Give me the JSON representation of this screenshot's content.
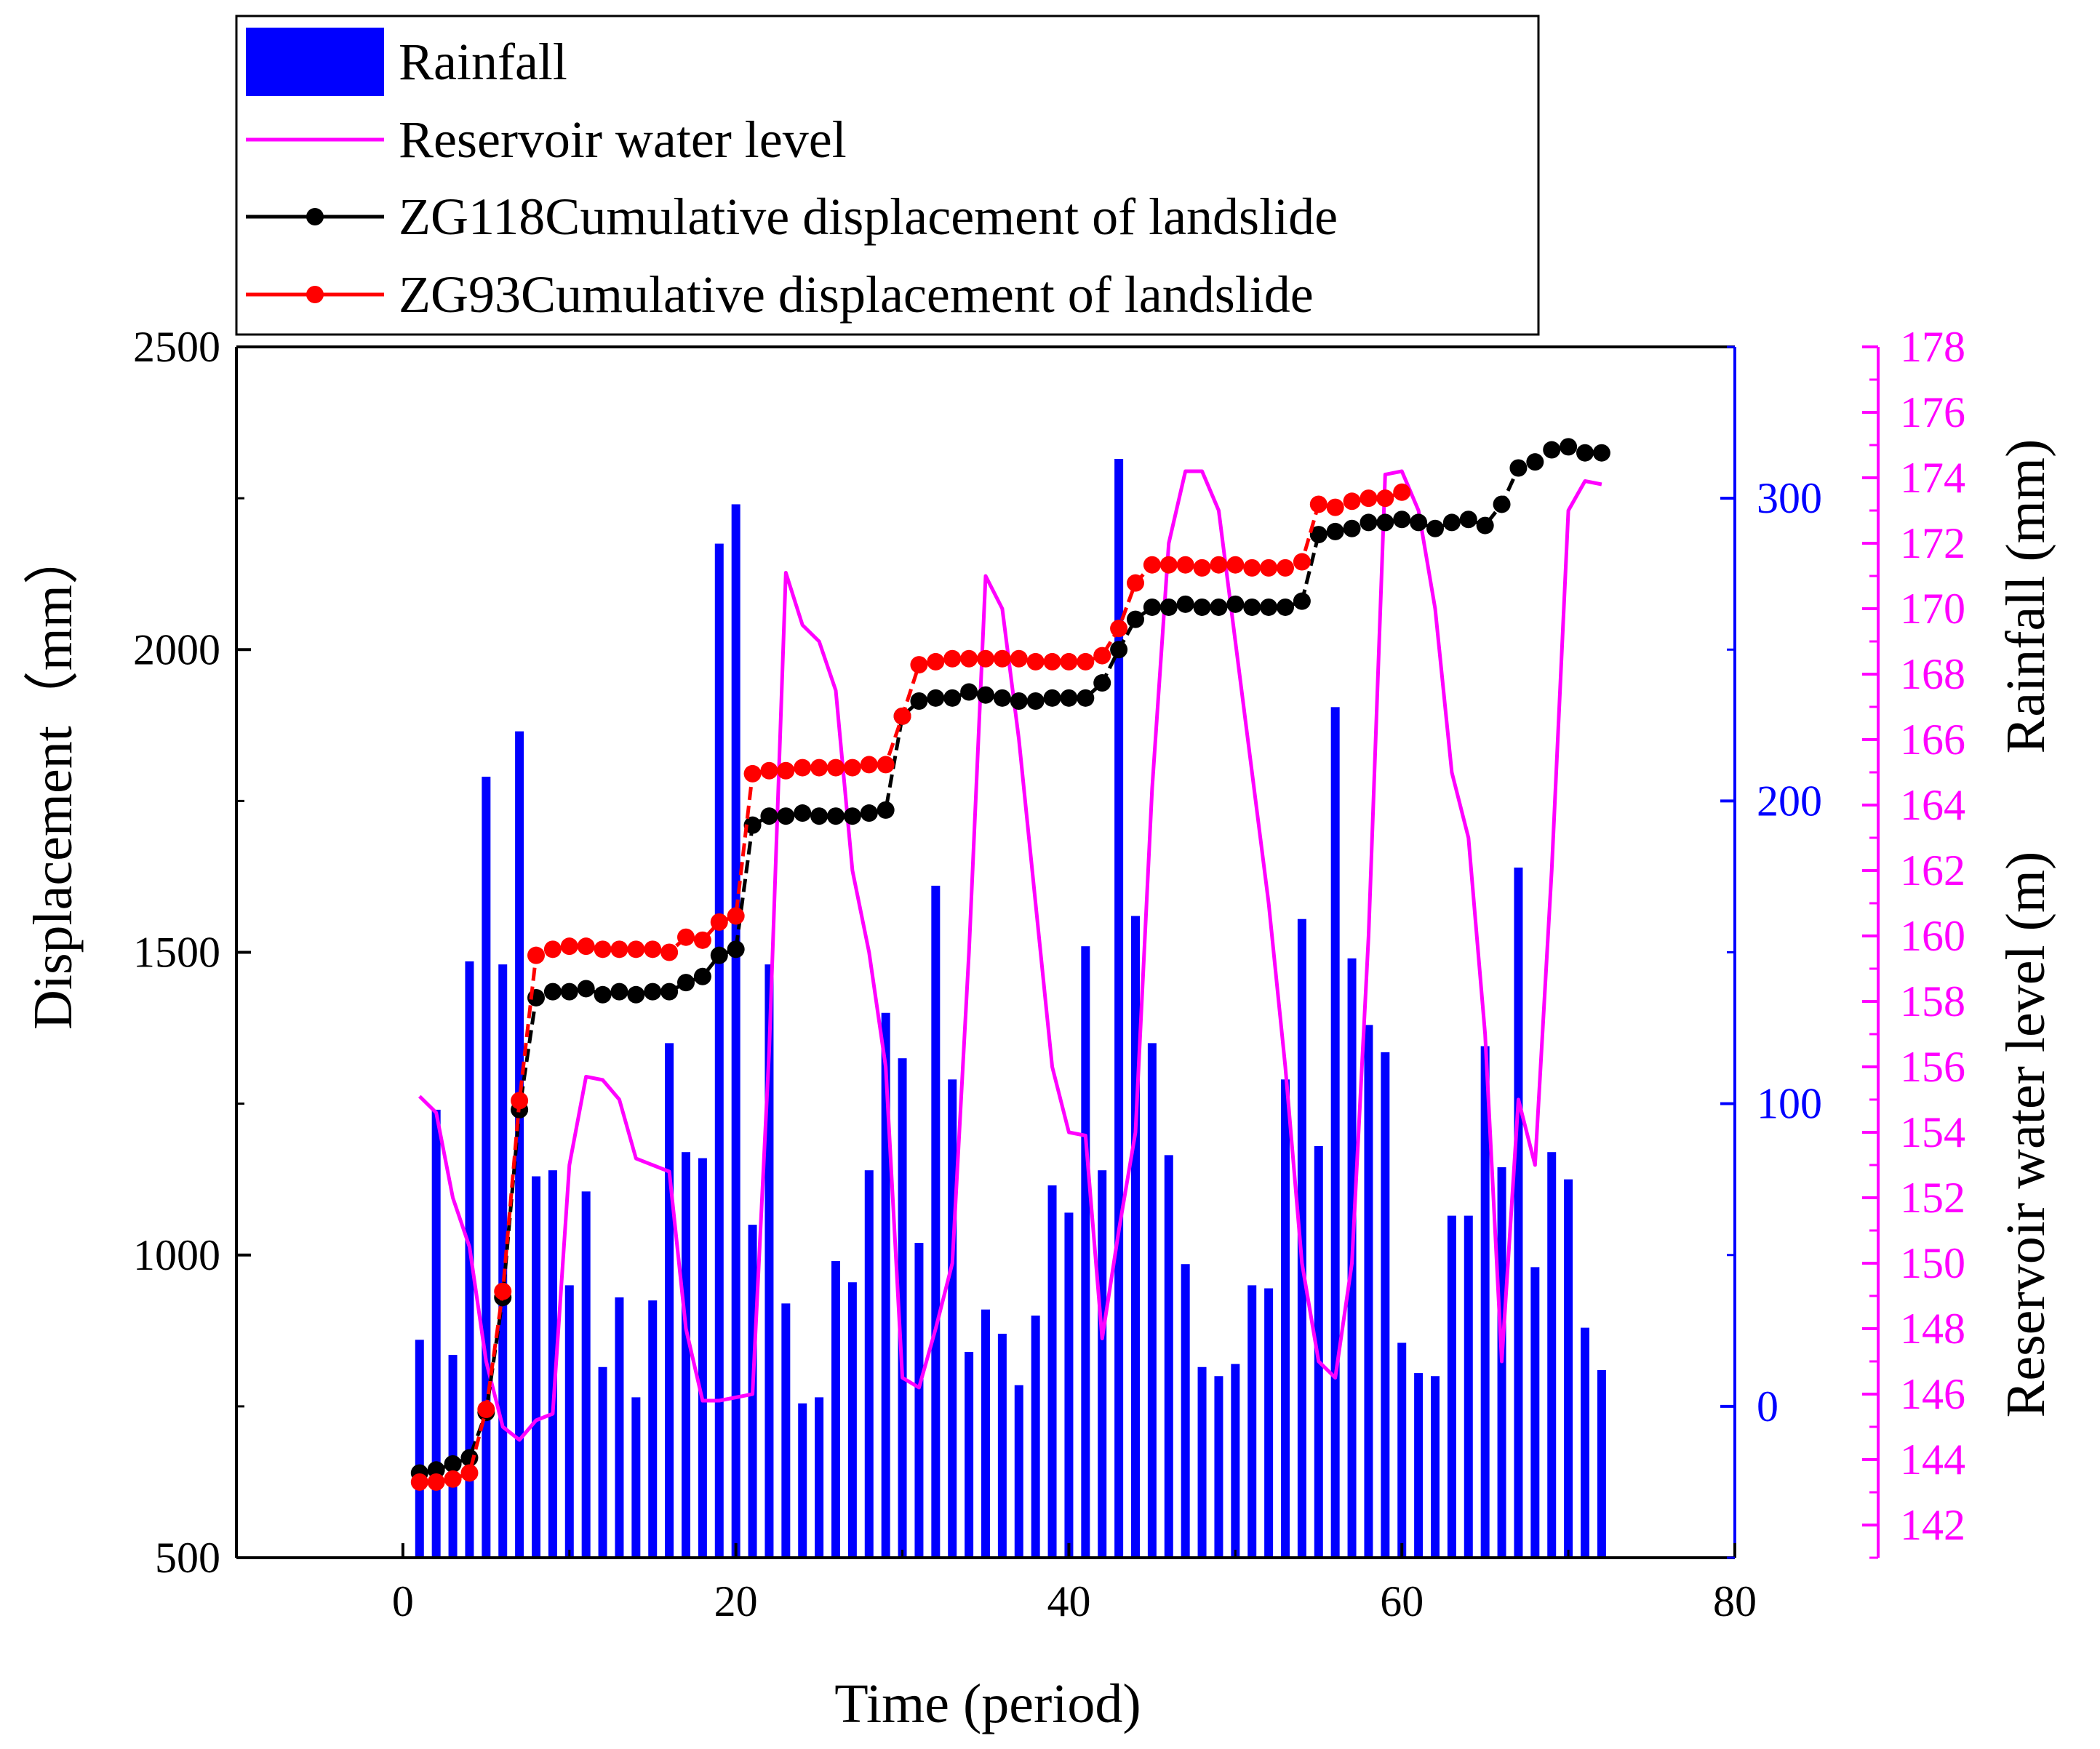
{
  "chart_data": {
    "type": "bar+line",
    "title": "",
    "xlabel": "Time (period)",
    "ylabel_left": "Displacement（mm）",
    "ylabel_right_1": "Rainfall (mm)",
    "ylabel_right_2": "Reservoir water level (m)",
    "xlim": [
      -10,
      80
    ],
    "ylim_left": [
      500,
      2500
    ],
    "ylim_rainfall": [
      -50,
      350
    ],
    "ylim_water": [
      141,
      178
    ],
    "x_ticks": [
      "0",
      "20",
      "40",
      "60",
      "80"
    ],
    "y_left_ticks": [
      "500",
      "1000",
      "1500",
      "2000",
      "2500"
    ],
    "rainfall_ticks": [
      "0",
      "100",
      "200",
      "300"
    ],
    "water_ticks": [
      "142",
      "144",
      "146",
      "148",
      "150",
      "152",
      "154",
      "156",
      "158",
      "160",
      "162",
      "164",
      "166",
      "168",
      "170",
      "172",
      "174",
      "176",
      "178"
    ],
    "legend": [
      {
        "label": "Rainfall",
        "kind": "bar",
        "color": "#0000ff"
      },
      {
        "label": "Reservoir water level",
        "kind": "line",
        "color": "#ff00ff"
      },
      {
        "label": "ZG118Cumulative displacement of landslide",
        "kind": "line-marker",
        "color": "#000000"
      },
      {
        "label": "ZG93Cumulative displacement of landslide",
        "kind": "line-marker",
        "color": "#ff0000"
      }
    ],
    "series": [
      {
        "name": "Rainfall",
        "axis": "rainfall",
        "color": "#0000ff",
        "x": [
          1,
          2,
          3,
          4,
          5,
          6,
          7,
          8,
          9,
          10,
          11,
          12,
          13,
          14,
          15,
          16,
          17,
          18,
          19,
          20,
          21,
          22,
          23,
          24,
          25,
          26,
          27,
          28,
          29,
          30,
          31,
          32,
          33,
          34,
          35,
          36,
          37,
          38,
          39,
          40,
          41,
          42,
          43,
          44,
          45,
          46,
          47,
          48,
          49,
          50,
          51,
          52,
          53,
          54,
          55,
          56,
          57,
          58,
          59,
          60,
          61,
          62,
          63,
          64,
          65,
          66,
          67,
          68,
          69,
          70,
          71,
          72
        ],
        "values": [
          22,
          98,
          17,
          147,
          208,
          146,
          223,
          76,
          78,
          40,
          71,
          13,
          36,
          3,
          35,
          120,
          84,
          82,
          285,
          298,
          60,
          146,
          34,
          1,
          3,
          48,
          41,
          78,
          130,
          115,
          54,
          172,
          108,
          18,
          32,
          24,
          7,
          30,
          73,
          64,
          152,
          78,
          313,
          162,
          120,
          83,
          47,
          13,
          10,
          14,
          40,
          39,
          108,
          161,
          86,
          231,
          148,
          126,
          117,
          21,
          11,
          10,
          63,
          63,
          119,
          79,
          178,
          46,
          84,
          75,
          26,
          12
        ]
      },
      {
        "name": "Reservoir water level",
        "axis": "water",
        "color": "#ff00ff",
        "x": [
          1,
          2,
          3,
          4,
          5,
          6,
          7,
          8,
          9,
          10,
          11,
          12,
          13,
          14,
          15,
          16,
          17,
          18,
          19,
          20,
          21,
          22,
          23,
          24,
          25,
          26,
          27,
          28,
          29,
          30,
          31,
          32,
          33,
          34,
          35,
          36,
          37,
          38,
          39,
          40,
          41,
          42,
          43,
          44,
          45,
          46,
          47,
          48,
          49,
          50,
          51,
          52,
          53,
          54,
          55,
          56,
          57,
          58,
          59,
          60,
          61,
          62,
          63,
          64,
          65,
          66,
          67,
          68,
          69,
          70,
          71,
          72
        ],
        "values": [
          155.1,
          154.6,
          152.0,
          150.5,
          147.0,
          145.0,
          144.6,
          145.2,
          145.4,
          153.0,
          155.7,
          155.6,
          155.0,
          153.2,
          153.0,
          152.8,
          148.0,
          145.8,
          145.8,
          145.9,
          146.0,
          156.5,
          171.1,
          169.5,
          169.0,
          167.5,
          162.0,
          159.5,
          156.0,
          146.5,
          146.2,
          148.0,
          150.0,
          159.5,
          171.0,
          170.0,
          166.0,
          161.0,
          156.0,
          154.0,
          153.9,
          147.7,
          151.0,
          154.0,
          164.5,
          172.0,
          174.2,
          174.2,
          173.0,
          169.0,
          165.0,
          161.0,
          156.0,
          150.0,
          147.0,
          146.5,
          150.0,
          160.0,
          174.1,
          174.2,
          173.0,
          170.0,
          165.0,
          163.0,
          157.0,
          147.0,
          155.0,
          153.0,
          162.0,
          173.0,
          173.9,
          173.8
        ]
      },
      {
        "name": "ZG118Cumulative displacement of landslide",
        "axis": "displacement",
        "color": "#000000",
        "x": [
          1,
          2,
          3,
          4,
          5,
          6,
          7,
          8,
          9,
          10,
          11,
          12,
          13,
          14,
          15,
          16,
          17,
          18,
          19,
          20,
          21,
          22,
          23,
          24,
          25,
          26,
          27,
          28,
          29,
          30,
          31,
          32,
          33,
          34,
          35,
          36,
          37,
          38,
          39,
          40,
          41,
          42,
          43,
          44,
          45,
          46,
          47,
          48,
          49,
          50,
          51,
          52,
          53,
          54,
          55,
          56,
          57,
          58,
          59,
          60,
          61,
          62,
          63,
          64,
          65,
          66,
          67,
          68,
          69,
          70,
          71,
          72
        ],
        "values": [
          640,
          645,
          655,
          665,
          740,
          930,
          1240,
          1425,
          1435,
          1435,
          1440,
          1430,
          1435,
          1430,
          1435,
          1435,
          1450,
          1460,
          1495,
          1505,
          1710,
          1725,
          1725,
          1730,
          1725,
          1725,
          1725,
          1730,
          1735,
          1890,
          1915,
          1920,
          1920,
          1930,
          1925,
          1920,
          1915,
          1915,
          1920,
          1920,
          1920,
          1945,
          2000,
          2050,
          2070,
          2070,
          2075,
          2070,
          2070,
          2075,
          2070,
          2070,
          2070,
          2080,
          2190,
          2195,
          2200,
          2210,
          2210,
          2215,
          2210,
          2200,
          2210,
          2215,
          2205,
          2240,
          2300,
          2310,
          2330,
          2335,
          2325,
          2325
        ]
      },
      {
        "name": "ZG93Cumulative displacement of landslide",
        "axis": "displacement",
        "color": "#ff0000",
        "x": [
          1,
          2,
          3,
          4,
          5,
          6,
          7,
          8,
          9,
          10,
          11,
          12,
          13,
          14,
          15,
          16,
          17,
          18,
          19,
          20,
          21,
          22,
          23,
          24,
          25,
          26,
          27,
          28,
          29,
          30,
          31,
          32,
          33,
          34,
          35,
          36,
          37,
          38,
          39,
          40,
          41,
          42,
          43,
          44,
          45,
          46,
          47,
          48,
          49,
          50,
          51,
          52,
          53,
          54,
          55,
          56,
          57,
          58,
          59,
          60
        ],
        "values": [
          625,
          625,
          630,
          640,
          745,
          940,
          1255,
          1495,
          1505,
          1510,
          1510,
          1505,
          1505,
          1505,
          1505,
          1500,
          1525,
          1520,
          1550,
          1560,
          1795,
          1800,
          1800,
          1805,
          1805,
          1805,
          1805,
          1810,
          1810,
          1890,
          1975,
          1980,
          1985,
          1985,
          1985,
          1985,
          1985,
          1980,
          1980,
          1980,
          1980,
          1990,
          2035,
          2110,
          2140,
          2140,
          2140,
          2135,
          2140,
          2140,
          2135,
          2135,
          2135,
          2145,
          2240,
          2235,
          2245,
          2250,
          2250,
          2260
        ]
      }
    ]
  }
}
